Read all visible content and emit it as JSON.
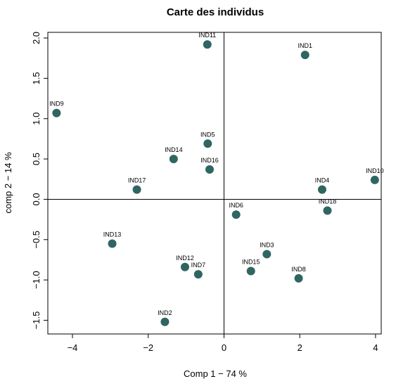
{
  "chart_data": {
    "type": "scatter",
    "title": "Carte des individus",
    "xlabel": "Comp 1 −  74 %",
    "ylabel": "comp 2 − 14 %",
    "xlim": [
      -4.65,
      4.15
    ],
    "ylim": [
      -1.67,
      2.07
    ],
    "xticks": [
      -4,
      -2,
      0,
      2,
      4
    ],
    "xtick_labels": [
      "−4",
      "−2",
      "0",
      "2",
      "4"
    ],
    "yticks": [
      -1.5,
      -1.0,
      -0.5,
      0.0,
      0.5,
      1.0,
      1.5,
      2.0
    ],
    "ytick_labels": [
      "−1.5",
      "−1.0",
      "−0.5",
      "0.0",
      "0.5",
      "1.0",
      "1.5",
      "2.0"
    ],
    "reference_lines": {
      "x": 0,
      "y": 0
    },
    "grid": false,
    "marker_color": "#2f6662",
    "points": [
      {
        "label": "IND1",
        "x": 2.14,
        "y": 1.79
      },
      {
        "label": "IND2",
        "x": -1.56,
        "y": -1.52
      },
      {
        "label": "IND3",
        "x": 1.13,
        "y": -0.68
      },
      {
        "label": "IND4",
        "x": 2.59,
        "y": 0.12
      },
      {
        "label": "IND5",
        "x": -0.43,
        "y": 0.69
      },
      {
        "label": "IND6",
        "x": 0.32,
        "y": -0.19
      },
      {
        "label": "IND7",
        "x": -0.68,
        "y": -0.93
      },
      {
        "label": "IND8",
        "x": 1.97,
        "y": -0.98
      },
      {
        "label": "IND9",
        "x": -4.42,
        "y": 1.07
      },
      {
        "label": "IND10",
        "x": 3.98,
        "y": 0.24
      },
      {
        "label": "IND11",
        "x": -0.44,
        "y": 1.92
      },
      {
        "label": "IND12",
        "x": -1.03,
        "y": -0.84
      },
      {
        "label": "IND13",
        "x": -2.95,
        "y": -0.55
      },
      {
        "label": "IND14",
        "x": -1.33,
        "y": 0.5
      },
      {
        "label": "IND15",
        "x": 0.71,
        "y": -0.89
      },
      {
        "label": "IND16",
        "x": -0.38,
        "y": 0.37
      },
      {
        "label": "IND17",
        "x": -2.3,
        "y": 0.12
      },
      {
        "label": "IND18",
        "x": 2.73,
        "y": -0.14
      }
    ]
  }
}
